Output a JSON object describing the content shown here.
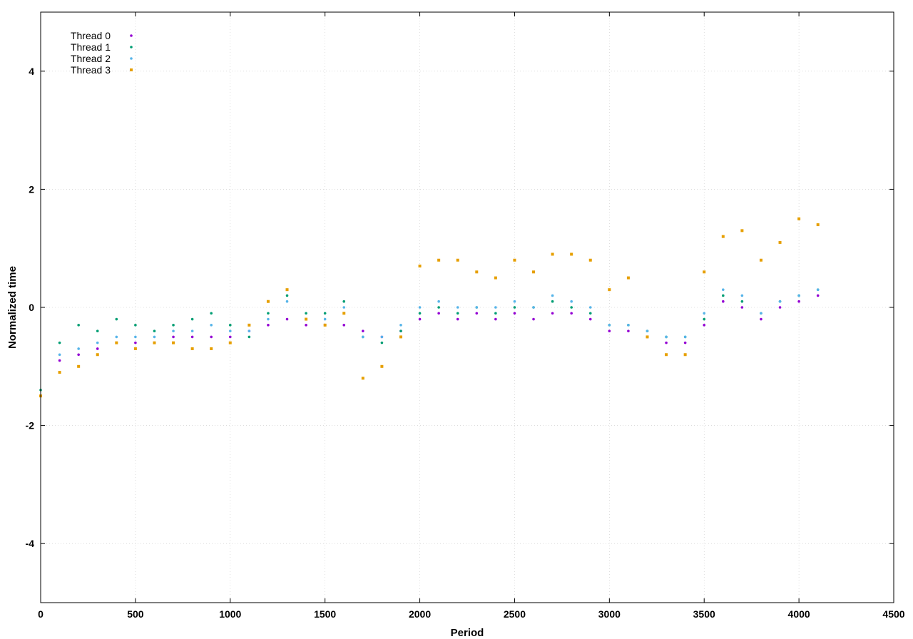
{
  "chart_data": {
    "type": "scatter",
    "title": "",
    "xlabel": "Period",
    "ylabel": "Normalized time",
    "xlim": [
      0,
      4500
    ],
    "ylim": [
      -5,
      5
    ],
    "xticks": [
      0,
      500,
      1000,
      1500,
      2000,
      2500,
      3000,
      3500,
      4000,
      4500
    ],
    "yticks": [
      -4,
      -2,
      0,
      2,
      4
    ],
    "grid": true,
    "legend_position": "top-left",
    "series": [
      {
        "name": "Thread 0",
        "color": "#9400d3",
        "marker": "dot",
        "x": [
          0,
          100,
          200,
          300,
          400,
          500,
          600,
          700,
          800,
          900,
          1000,
          1100,
          1200,
          1300,
          1400,
          1500,
          1600,
          1700,
          1800,
          1900,
          2000,
          2100,
          2200,
          2300,
          2400,
          2500,
          2600,
          2700,
          2800,
          2900,
          3000,
          3100,
          3200,
          3300,
          3400,
          3500,
          3600,
          3700,
          3800,
          3900,
          4000,
          4100
        ],
        "y": [
          -1.5,
          -0.9,
          -0.8,
          -0.7,
          -0.6,
          -0.6,
          -0.6,
          -0.5,
          -0.5,
          -0.5,
          -0.5,
          -0.4,
          -0.3,
          -0.2,
          -0.3,
          -0.3,
          -0.3,
          -0.4,
          -0.5,
          -0.4,
          -0.2,
          -0.1,
          -0.2,
          -0.1,
          -0.2,
          -0.1,
          -0.2,
          -0.1,
          -0.1,
          -0.2,
          -0.4,
          -0.4,
          -0.5,
          -0.6,
          -0.6,
          -0.3,
          0.1,
          0.0,
          -0.2,
          0.0,
          0.1,
          0.2
        ]
      },
      {
        "name": "Thread 1",
        "color": "#009e73",
        "marker": "dot",
        "x": [
          0,
          100,
          200,
          300,
          400,
          500,
          600,
          700,
          800,
          900,
          1000,
          1100,
          1200,
          1300,
          1400,
          1500,
          1600,
          1700,
          1800,
          1900,
          2000,
          2100,
          2200,
          2300,
          2400,
          2500,
          2600,
          2700,
          2800,
          2900,
          3000,
          3100,
          3200,
          3300,
          3400,
          3500,
          3600,
          3700,
          3800,
          3900,
          4000,
          4100
        ],
        "y": [
          -1.4,
          -0.6,
          -0.3,
          -0.4,
          -0.2,
          -0.3,
          -0.4,
          -0.3,
          -0.2,
          -0.1,
          -0.3,
          -0.5,
          -0.1,
          0.2,
          -0.1,
          -0.1,
          0.1,
          -0.5,
          -0.6,
          -0.4,
          -0.1,
          0.0,
          -0.1,
          0.0,
          -0.1,
          0.0,
          0.0,
          0.1,
          0.0,
          -0.1,
          -0.3,
          -0.3,
          -0.4,
          -0.5,
          -0.5,
          -0.2,
          0.2,
          0.1,
          -0.1,
          0.1,
          0.2,
          0.3
        ]
      },
      {
        "name": "Thread 2",
        "color": "#56b4e9",
        "marker": "dot",
        "x": [
          0,
          100,
          200,
          300,
          400,
          500,
          600,
          700,
          800,
          900,
          1000,
          1100,
          1200,
          1300,
          1400,
          1500,
          1600,
          1700,
          1800,
          1900,
          2000,
          2100,
          2200,
          2300,
          2400,
          2500,
          2600,
          2700,
          2800,
          2900,
          3000,
          3100,
          3200,
          3300,
          3400,
          3500,
          3600,
          3700,
          3800,
          3900,
          4000,
          4100
        ],
        "y": [
          -1.5,
          -0.8,
          -0.7,
          -0.6,
          -0.5,
          -0.5,
          -0.5,
          -0.4,
          -0.4,
          -0.3,
          -0.4,
          -0.4,
          -0.2,
          0.1,
          -0.2,
          -0.2,
          0.0,
          -0.5,
          -0.5,
          -0.3,
          0.0,
          0.1,
          0.0,
          0.0,
          0.0,
          0.1,
          0.0,
          0.2,
          0.1,
          0.0,
          -0.3,
          -0.3,
          -0.4,
          -0.5,
          -0.5,
          -0.1,
          0.3,
          0.2,
          -0.1,
          0.1,
          0.2,
          0.3
        ]
      },
      {
        "name": "Thread 3",
        "color": "#e69f00",
        "marker": "square",
        "x": [
          0,
          100,
          200,
          300,
          400,
          500,
          600,
          700,
          800,
          900,
          1000,
          1100,
          1200,
          1300,
          1400,
          1500,
          1600,
          1700,
          1800,
          1900,
          2000,
          2100,
          2200,
          2300,
          2400,
          2500,
          2600,
          2700,
          2800,
          2900,
          3000,
          3100,
          3200,
          3300,
          3400,
          3500,
          3600,
          3700,
          3800,
          3900,
          4000,
          4100
        ],
        "y": [
          -1.5,
          -1.1,
          -1.0,
          -0.8,
          -0.6,
          -0.7,
          -0.6,
          -0.6,
          -0.7,
          -0.7,
          -0.6,
          -0.3,
          0.1,
          0.3,
          -0.2,
          -0.3,
          -0.1,
          -1.2,
          -1.0,
          -0.5,
          0.7,
          0.8,
          0.8,
          0.6,
          0.5,
          0.8,
          0.6,
          0.9,
          0.9,
          0.8,
          0.3,
          0.5,
          -0.5,
          -0.8,
          -0.8,
          0.6,
          1.2,
          1.3,
          0.8,
          1.1,
          1.5,
          1.4
        ]
      }
    ]
  }
}
